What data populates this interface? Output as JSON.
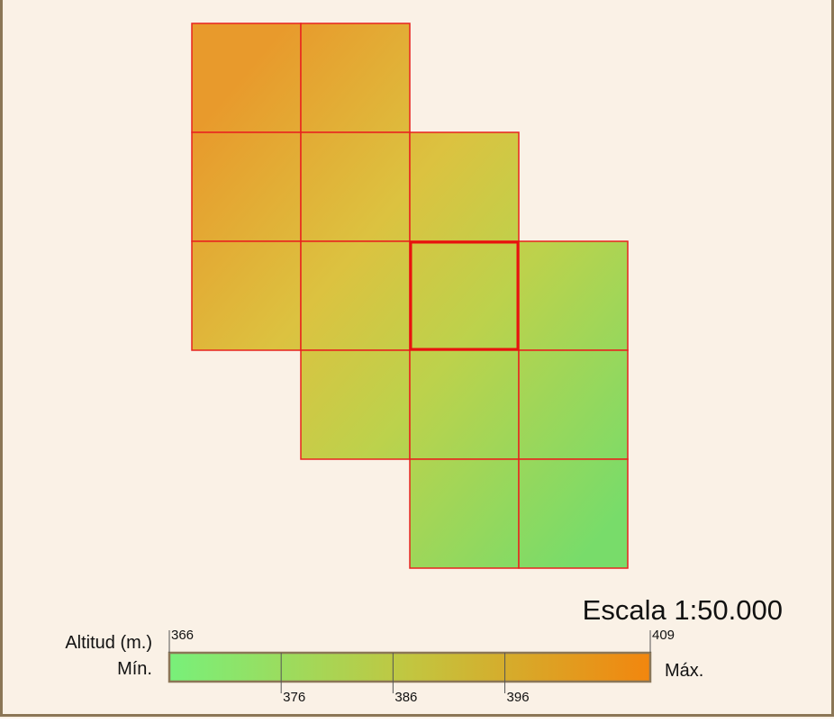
{
  "scale": "Escala 1:50.000",
  "legend": {
    "title": "Altitud (m.)",
    "min_label": "Mín.",
    "max_label": "Máx.",
    "range": [
      366,
      409
    ],
    "ticks": [
      366,
      376,
      386,
      396,
      409
    ],
    "colors": [
      "#78f07a",
      "#c2c640",
      "#f2860e"
    ]
  }
}
